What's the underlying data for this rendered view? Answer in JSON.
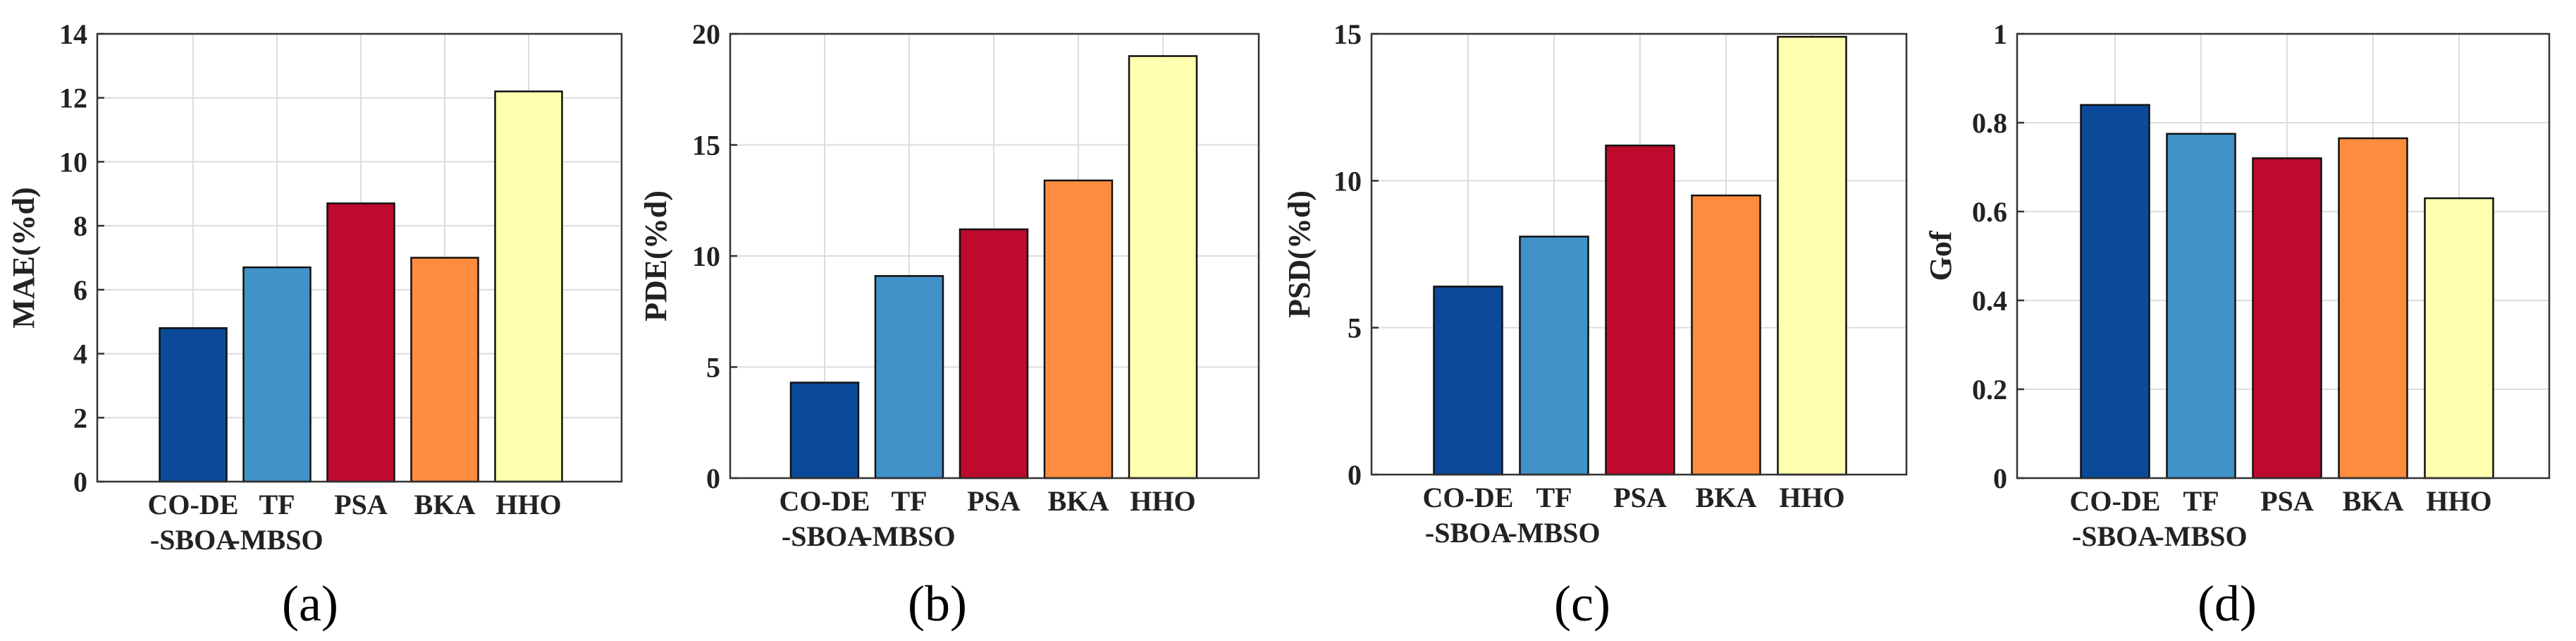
{
  "chart_data": [
    {
      "type": "bar",
      "panel_label": "(a)",
      "ylabel": "MAE(%d)",
      "ylim": [
        0,
        14
      ],
      "yticks": [
        0,
        2,
        4,
        6,
        8,
        10,
        12,
        14
      ],
      "grid": true,
      "categories": [
        [
          "CO-DE",
          "-SBOA"
        ],
        [
          "TF",
          "-MBSO"
        ],
        [
          "PSA"
        ],
        [
          "BKA"
        ],
        [
          "HHO"
        ]
      ],
      "values": [
        4.8,
        6.7,
        8.7,
        7.0,
        12.2
      ],
      "colors": [
        "#0a4a99",
        "#4192c9",
        "#be0a2c",
        "#fd8c3e",
        "#ffffb0"
      ]
    },
    {
      "type": "bar",
      "panel_label": "(b)",
      "ylabel": "PDE(%d)",
      "ylim": [
        0,
        20
      ],
      "yticks": [
        0,
        5,
        10,
        15,
        20
      ],
      "grid": true,
      "categories": [
        [
          "CO-DE",
          "-SBOA"
        ],
        [
          "TF",
          "-MBSO"
        ],
        [
          "PSA"
        ],
        [
          "BKA"
        ],
        [
          "HHO"
        ]
      ],
      "values": [
        4.3,
        9.1,
        11.2,
        13.4,
        19.0
      ],
      "colors": [
        "#0a4a99",
        "#4192c9",
        "#be0a2c",
        "#fd8c3e",
        "#ffffb0"
      ]
    },
    {
      "type": "bar",
      "panel_label": "(c)",
      "ylabel": "PSD(%d)",
      "ylim": [
        0,
        15
      ],
      "yticks": [
        0,
        5,
        10,
        15
      ],
      "grid": true,
      "categories": [
        [
          "CO-DE",
          "-SBOA"
        ],
        [
          "TF",
          "-MBSO"
        ],
        [
          "PSA"
        ],
        [
          "BKA"
        ],
        [
          "HHO"
        ]
      ],
      "values": [
        6.4,
        8.1,
        11.2,
        9.5,
        14.9
      ],
      "colors": [
        "#0a4a99",
        "#4192c9",
        "#be0a2c",
        "#fd8c3e",
        "#ffffb0"
      ]
    },
    {
      "type": "bar",
      "panel_label": "(d)",
      "ylabel": "Gof",
      "ylim": [
        0,
        1
      ],
      "yticks": [
        0,
        0.2,
        0.4,
        0.6,
        0.8,
        1
      ],
      "grid": true,
      "categories": [
        [
          "CO-DE",
          "-SBOA"
        ],
        [
          "TF",
          "-MBSO"
        ],
        [
          "PSA"
        ],
        [
          "BKA"
        ],
        [
          "HHO"
        ]
      ],
      "values": [
        0.84,
        0.775,
        0.72,
        0.765,
        0.63
      ],
      "colors": [
        "#0a4a99",
        "#4192c9",
        "#be0a2c",
        "#fd8c3e",
        "#ffffb0"
      ]
    }
  ]
}
